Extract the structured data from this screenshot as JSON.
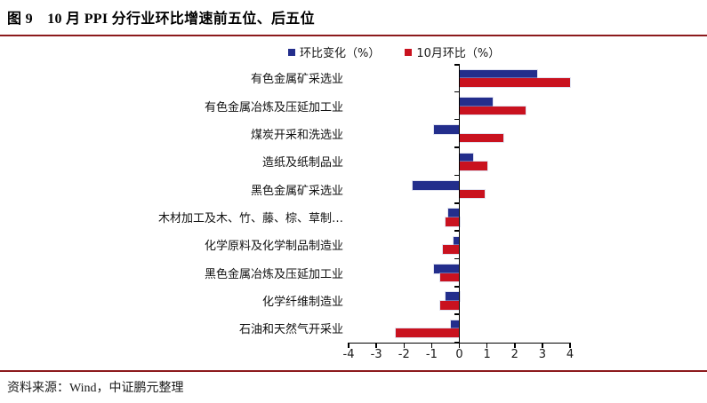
{
  "figure": {
    "title": "图 9　10 月 PPI 分行业环比增速前五位、后五位",
    "source": "资料来源：Wind，中证鹏元整理",
    "rule_color": "#8C1A1C"
  },
  "chart_data": {
    "type": "bar",
    "orientation": "horizontal",
    "title": "10 月 PPI 分行业环比增速前五位、后五位",
    "xlabel": "",
    "ylabel": "",
    "categories": [
      "有色金属矿采选业",
      "有色金属冶炼及压延加工业",
      "煤炭开采和洗选业",
      "造纸及纸制品业",
      "黑色金属矿采选业",
      "木材加工及木、竹、藤、棕、草制…",
      "化学原料及化学制品制造业",
      "黑色金属冶炼及压延加工业",
      "化学纤维制造业",
      "石油和天然气开采业"
    ],
    "series": [
      {
        "name": "环比变化（%）",
        "color": "#232E8C",
        "values": [
          2.8,
          1.2,
          -0.9,
          0.5,
          -1.7,
          -0.4,
          -0.2,
          -0.9,
          -0.5,
          -0.3
        ]
      },
      {
        "name": "10月环比（%）",
        "color": "#C9121F",
        "values": [
          4.0,
          2.4,
          1.6,
          1.0,
          0.9,
          -0.5,
          -0.6,
          -0.7,
          -0.7,
          -2.3
        ]
      }
    ],
    "xlim": [
      -4,
      4
    ],
    "xticks": [
      -4,
      -3,
      -2,
      -1,
      0,
      1,
      2,
      3,
      4
    ],
    "legend_position": "top-center",
    "grid": false,
    "axis_color": "#000000"
  }
}
